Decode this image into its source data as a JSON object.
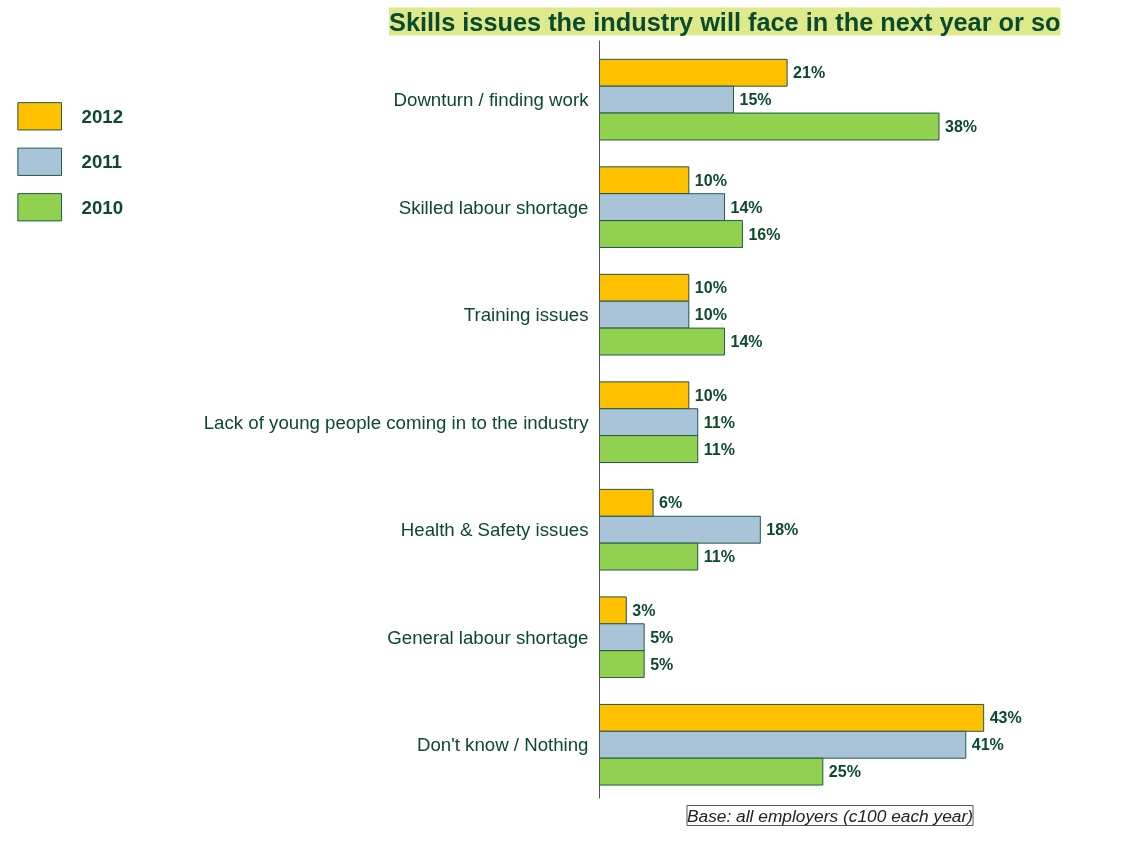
{
  "chart_data": {
    "type": "bar",
    "orientation": "horizontal",
    "title": "Skills issues the industry will face in the next year or so",
    "categories": [
      "Downturn / finding work",
      "Skilled labour shortage",
      "Training issues",
      "Lack of young people coming in to the industry",
      "Health & Safety issues",
      "General labour shortage",
      "Don't know / Nothing"
    ],
    "series": [
      {
        "name": "2012",
        "color": "#ffc000",
        "values": [
          21,
          10,
          10,
          10,
          6,
          3,
          43
        ],
        "value_labels": [
          "21%",
          "10%",
          "10%",
          "10%",
          "6%",
          "3%",
          "43%"
        ]
      },
      {
        "name": "2011",
        "color": "#a9c4d9",
        "values": [
          15,
          14,
          10,
          11,
          18,
          5,
          41
        ],
        "value_labels": [
          "15%",
          "14%",
          "10%",
          "11%",
          "18%",
          "5%",
          "41%"
        ]
      },
      {
        "name": "2010",
        "color": "#92d050",
        "values": [
          38,
          16,
          14,
          11,
          11,
          5,
          25
        ],
        "value_labels": [
          "38%",
          "16%",
          "14%",
          "11%",
          "11%",
          "5%",
          "25%"
        ]
      }
    ],
    "legend": "top left",
    "grid": false,
    "annotations": [
      "Base: all employers (c100 each year)"
    ]
  }
}
